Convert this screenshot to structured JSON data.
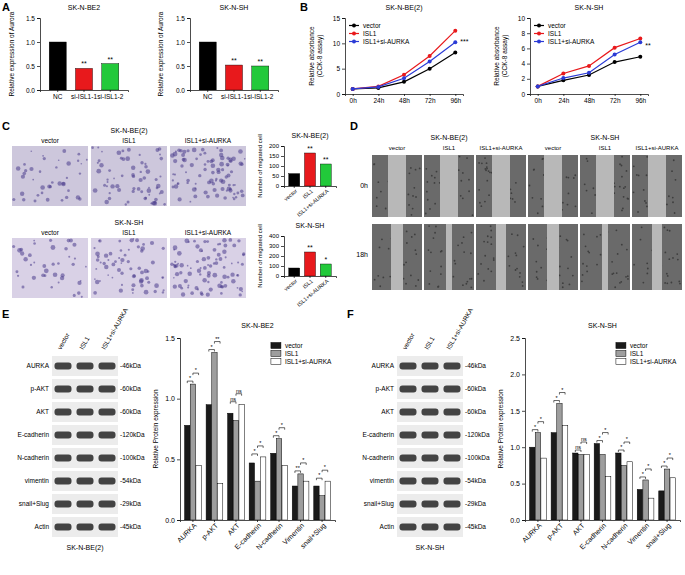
{
  "chart_data": [
    {
      "type": "bar",
      "title": "SK-N-BE2",
      "y_label": "Relative expression of Aurora",
      "categories": [
        "NC",
        "si-ISL1-1",
        "si-ISL1-2"
      ],
      "values": [
        1,
        0.45,
        0.55
      ],
      "colors": [
        "#000000",
        "#e8191c",
        "#22c93a"
      ],
      "ylim": [
        0,
        1.5
      ],
      "yticks": [
        {
          "value": 0,
          "label": "0.0"
        },
        {
          "value": 0.5,
          "label": "0.5"
        },
        {
          "value": 1,
          "label": "1.0"
        },
        {
          "value": 1.5,
          "label": "1.5"
        }
      ],
      "annotations": [
        {
          "category": "si-ISL1-1",
          "text": "**"
        },
        {
          "category": "si-ISL1-2",
          "text": "**"
        }
      ]
    },
    {
      "type": "bar",
      "title": "SK-N-SH",
      "y_label": "Relative expression of Aurora",
      "categories": [
        "NC",
        "si-ISL1-1",
        "si-ISL1-2"
      ],
      "values": [
        1,
        0.52,
        0.5
      ],
      "colors": [
        "#000000",
        "#e8191c",
        "#22c93a"
      ],
      "ylim": [
        0,
        1.5
      ],
      "yticks": [
        {
          "value": 0,
          "label": "0.0"
        },
        {
          "value": 0.5,
          "label": "0.5"
        },
        {
          "value": 1,
          "label": "1.0"
        },
        {
          "value": 1.5,
          "label": "1.5"
        }
      ],
      "annotations": [
        {
          "category": "si-ISL1-1",
          "text": "**"
        },
        {
          "category": "si-ISL1-2",
          "text": "**"
        }
      ]
    },
    {
      "type": "line",
      "title": "SK-N-BE(2)",
      "y_label": [
        "Relative absorbance",
        "(CCK-8 assay)"
      ],
      "categories": [
        "0h",
        "24h",
        "48h",
        "72h",
        "96h"
      ],
      "series": [
        {
          "name": "vector",
          "color": "#000000",
          "marker": "circle",
          "values": [
            1,
            1.2,
            2.4,
            5,
            8.2
          ]
        },
        {
          "name": "ISL1",
          "color": "#e8191c",
          "marker": "circle",
          "values": [
            1,
            1.5,
            3.8,
            7.5,
            12.5
          ]
        },
        {
          "name": "ISL1+si-AURKA",
          "color": "#2b3bd6",
          "marker": "circle",
          "values": [
            1,
            1.4,
            3.1,
            6.4,
            10.2
          ]
        }
      ],
      "ylim": [
        0,
        15
      ],
      "yticks": [
        0,
        5,
        10,
        15
      ],
      "legend": "upper left",
      "annotations": [
        {
          "category": "96h",
          "text": "***"
        }
      ]
    },
    {
      "type": "line",
      "title": "SK-N-SH",
      "y_label": [
        "Relative absorbance",
        "(CCK-8 assay)"
      ],
      "categories": [
        "0h",
        "24h",
        "48h",
        "72h",
        "96h"
      ],
      "series": [
        {
          "name": "vector",
          "color": "#000000",
          "marker": "circle",
          "values": [
            1,
            1.8,
            2.5,
            4.2,
            4.9
          ]
        },
        {
          "name": "ISL1",
          "color": "#e8191c",
          "marker": "circle",
          "values": [
            1,
            2.7,
            3.7,
            6.1,
            7.3
          ]
        },
        {
          "name": "ISL1+si-AURKA",
          "color": "#2b3bd6",
          "marker": "circle",
          "values": [
            1,
            2.1,
            2.8,
            5.2,
            6.8
          ]
        }
      ],
      "ylim": [
        0,
        10
      ],
      "yticks": [
        0,
        2,
        4,
        6,
        8,
        10
      ],
      "legend": "upper left",
      "annotations": [
        {
          "category": "96h",
          "text": "**"
        }
      ]
    },
    {
      "type": "bar",
      "title": "SK-N-BE(2)",
      "y_label": "Number of migrated cell",
      "categories": [
        "vector",
        "ISL1",
        "ISL1+si-AURKA"
      ],
      "values": [
        62,
        165,
        110
      ],
      "colors": [
        "#000000",
        "#e8191c",
        "#22c93a"
      ],
      "ylim": [
        0,
        200
      ],
      "yticks": [
        0,
        50,
        100,
        150,
        200
      ],
      "annotations": [
        {
          "category": "ISL1",
          "text": "**"
        },
        {
          "category": "ISL1+si-AURKA",
          "text": "**"
        }
      ]
    },
    {
      "type": "bar",
      "title": "SK-N-SH",
      "y_label": "Number of migrated cell",
      "categories": [
        "vector",
        "ISL1",
        "ISL1+si-AURKA"
      ],
      "values": [
        80,
        240,
        120
      ],
      "colors": [
        "#000000",
        "#e8191c",
        "#22c93a"
      ],
      "ylim": [
        0,
        400
      ],
      "yticks": [
        0,
        100,
        200,
        300,
        400
      ],
      "annotations": [
        {
          "category": "ISL1",
          "text": "**"
        },
        {
          "category": "ISL1+si-AURKA",
          "text": "*"
        }
      ]
    },
    {
      "type": "bar",
      "title": "SK-N-BE2",
      "y_label": "Relative Protein expression",
      "categories": [
        "AURKA",
        "p-AKT",
        "AKT",
        "E-cadherin",
        "N-cadherin",
        "Vimentin",
        "snail+Slug"
      ],
      "series": [
        {
          "name": "vector",
          "color": "#1a1a1a",
          "values": [
            0.78,
            0.95,
            0.88,
            0.47,
            0.55,
            0.28,
            0.28
          ]
        },
        {
          "name": "ISL1",
          "color": "#9e9e9e",
          "values": [
            1.12,
            1.38,
            0.82,
            0.32,
            0.67,
            0.38,
            0.2
          ]
        },
        {
          "name": "ISL1+si-AURKA",
          "color": "#ffffff",
          "values": [
            0.45,
            0.3,
            0.95,
            0.52,
            0.45,
            0.32,
            0.32
          ]
        }
      ],
      "ylim": [
        0,
        1.5
      ],
      "yticks": [
        {
          "value": 0,
          "label": "0.0"
        },
        {
          "value": 0.5,
          "label": "0.5"
        },
        {
          "value": 1,
          "label": "1.0"
        },
        {
          "value": 1.5,
          "label": "1.5"
        }
      ],
      "legend": "upper right",
      "annotations": [
        {
          "category": "AURKA",
          "series": [
            "vector",
            "ISL1"
          ],
          "text": "*"
        },
        {
          "category": "AURKA",
          "series": [
            "ISL1",
            "ISL1+si-AURKA"
          ],
          "text": "*"
        },
        {
          "category": "p-AKT",
          "series": [
            "vector",
            "ISL1"
          ],
          "text": "*"
        },
        {
          "category": "p-AKT",
          "series": [
            "ISL1",
            "ISL1+si-AURKA"
          ],
          "text": "**"
        },
        {
          "category": "AKT",
          "series": [
            "vector",
            "ISL1"
          ],
          "text": "ns"
        },
        {
          "category": "AKT",
          "series": [
            "ISL1",
            "ISL1+si-AURKA"
          ],
          "text": "ns"
        },
        {
          "category": "E-cadherin",
          "series": [
            "vector",
            "ISL1"
          ],
          "text": "*"
        },
        {
          "category": "E-cadherin",
          "series": [
            "ISL1",
            "ISL1+si-AURKA"
          ],
          "text": "*"
        },
        {
          "category": "N-cadherin",
          "series": [
            "vector",
            "ISL1"
          ],
          "text": "*"
        },
        {
          "category": "N-cadherin",
          "series": [
            "ISL1",
            "ISL1+si-AURKA"
          ],
          "text": "*"
        },
        {
          "category": "Vimentin",
          "series": [
            "vector",
            "ISL1"
          ],
          "text": "**"
        },
        {
          "category": "Vimentin",
          "series": [
            "ISL1",
            "ISL1+si-AURKA"
          ],
          "text": "*"
        },
        {
          "category": "snail+Slug",
          "series": [
            "vector",
            "ISL1"
          ],
          "text": "*"
        },
        {
          "category": "snail+Slug",
          "series": [
            "ISL1",
            "ISL1+si-AURKA"
          ],
          "text": "*"
        }
      ]
    },
    {
      "type": "bar",
      "title": "SK-N-SH",
      "y_label": "Relative Protein expression",
      "categories": [
        "AURKA",
        "p-AKT",
        "AKT",
        "E-cadherin",
        "N-cadherin",
        "Vimentin",
        "snail+Slug"
      ],
      "series": [
        {
          "name": "vector",
          "color": "#1a1a1a",
          "values": [
            1.0,
            1.2,
            0.92,
            1.05,
            0.92,
            0.42,
            0.4
          ]
        },
        {
          "name": "ISL1",
          "color": "#9e9e9e",
          "values": [
            1.2,
            1.6,
            0.9,
            0.9,
            0.75,
            0.55,
            0.7
          ]
        },
        {
          "name": "ISL1+si-AURKA",
          "color": "#ffffff",
          "values": [
            0.85,
            1.3,
            0.9,
            0.6,
            0.8,
            0.3,
            0.58
          ]
        }
      ],
      "ylim": [
        0,
        2.5
      ],
      "yticks": [
        {
          "value": 0,
          "label": "0.0"
        },
        {
          "value": 0.5,
          "label": "0.5"
        },
        {
          "value": 1,
          "label": "1.0"
        },
        {
          "value": 1.5,
          "label": "1.5"
        },
        {
          "value": 2,
          "label": "2.0"
        },
        {
          "value": 2.5,
          "label": "2.5"
        }
      ],
      "legend": "upper right",
      "annotations": [
        {
          "category": "AURKA",
          "series": [
            "vector",
            "ISL1"
          ],
          "text": "*"
        },
        {
          "category": "AURKA",
          "series": [
            "ISL1",
            "ISL1+si-AURKA"
          ],
          "text": "*"
        },
        {
          "category": "p-AKT",
          "series": [
            "vector",
            "ISL1"
          ],
          "text": "*"
        },
        {
          "category": "p-AKT",
          "series": [
            "ISL1",
            "ISL1+si-AURKA"
          ],
          "text": "*"
        },
        {
          "category": "AKT",
          "series": [
            "vector",
            "ISL1"
          ],
          "text": "ns"
        },
        {
          "category": "AKT",
          "series": [
            "ISL1",
            "ISL1+si-AURKA"
          ],
          "text": "ns"
        },
        {
          "category": "E-cadherin",
          "series": [
            "vector",
            "ISL1"
          ],
          "text": "*"
        },
        {
          "category": "E-cadherin",
          "series": [
            "ISL1",
            "ISL1+si-AURKA"
          ],
          "text": "*"
        },
        {
          "category": "N-cadherin",
          "series": [
            "vector",
            "ISL1"
          ],
          "text": "*"
        },
        {
          "category": "N-cadherin",
          "series": [
            "ISL1",
            "ISL1+si-AURKA"
          ],
          "text": "*"
        },
        {
          "category": "Vimentin",
          "series": [
            "vector",
            "ISL1"
          ],
          "text": "*"
        },
        {
          "category": "Vimentin",
          "series": [
            "ISL1",
            "ISL1+si-AURKA"
          ],
          "text": "*"
        },
        {
          "category": "snail+Slug",
          "series": [
            "vector",
            "ISL1"
          ],
          "text": "*"
        },
        {
          "category": "snail+Slug",
          "series": [
            "ISL1",
            "ISL1+si-AURKA"
          ],
          "text": "*"
        }
      ]
    }
  ],
  "panel_labels": [
    "A",
    "B",
    "C",
    "D",
    "E",
    "F"
  ],
  "migration_assay": {
    "rows": [
      "SK-N-BE(2)",
      "SK-N-SH"
    ],
    "columns": [
      "vector",
      "ISL1",
      "ISL1+si-AURKA"
    ]
  },
  "wound_healing": {
    "cell_lines": [
      "SK-N-BE(2)",
      "SK-N-SH"
    ],
    "columns": [
      "vector",
      "ISL1",
      "ISL1+si-AURKA"
    ],
    "times": [
      "0h",
      "18h"
    ]
  },
  "western_blots": [
    {
      "cell_line": "SK-N-BE(2)",
      "lanes": [
        "vector",
        "ISL1",
        "ISL1+si-AURKA"
      ],
      "proteins": [
        "AURKA",
        "p-AKT",
        "AKT",
        "E-cadherin",
        "N-cadherin",
        "vimentin",
        "snail+Slug",
        "Actin"
      ],
      "sizes": [
        "-46kDa",
        "-60kDa",
        "-60kDa",
        "-120kDa",
        "-100kDa",
        "-54kDa",
        "-29kDa",
        "-45kDa"
      ]
    },
    {
      "cell_line": "SK-N-SH",
      "lanes": [
        "vector",
        "ISL1",
        "ISL1+si-AURKA"
      ],
      "proteins": [
        "AURKA",
        "p-AKT",
        "AKT",
        "E-cadherin",
        "N-cadherin",
        "vimentin",
        "snail+Slug",
        "Actin"
      ],
      "sizes": [
        "-46kDa",
        "-60kDa",
        "-60kDa",
        "-120kDa",
        "-100kDa",
        "-54kDa",
        "-29kDa",
        "-45kDa"
      ]
    }
  ]
}
